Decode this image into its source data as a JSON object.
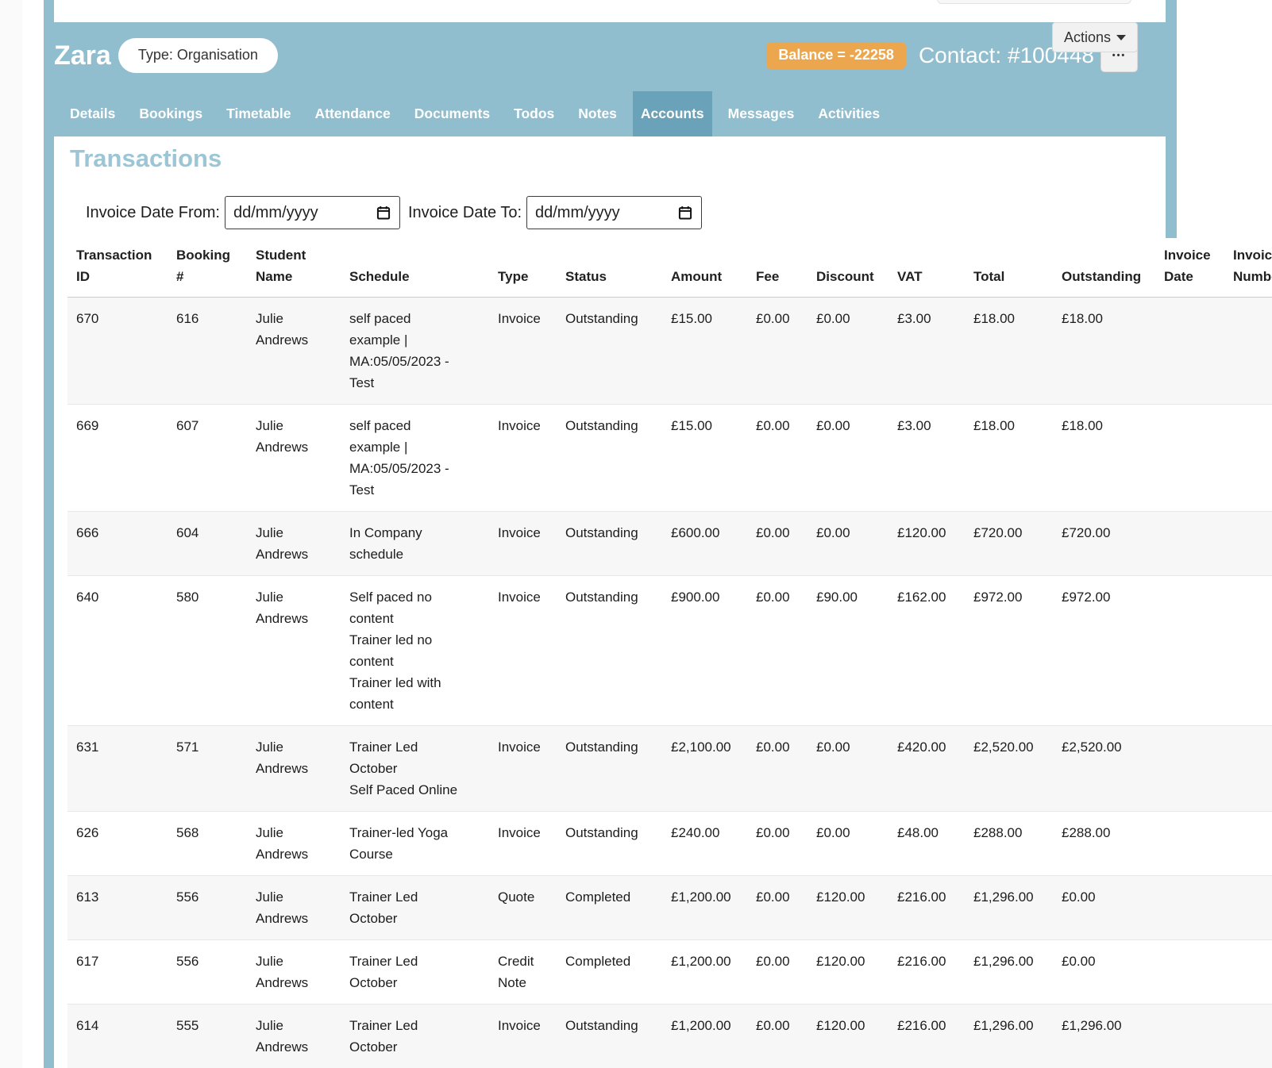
{
  "colors": {
    "panel_blue": "#90bece",
    "active_tab_blue": "#6aa3b9",
    "heading_blue": "#9cc6d5",
    "balance_orange": "#eca64e"
  },
  "header": {
    "contact_name": "Zara",
    "type_pill": "Type: Organisation",
    "balance_badge": "Balance = -22258",
    "contact_id": "Contact: #100448",
    "more_label": "•••",
    "actions_label": "Actions",
    "active_tab": "Accounts",
    "tabs": [
      "Details",
      "Bookings",
      "Timetable",
      "Attendance",
      "Documents",
      "Todos",
      "Notes",
      "Accounts",
      "Messages",
      "Activities"
    ]
  },
  "main": {
    "title": "Transactions",
    "filters": {
      "from_label": "Invoice Date From:",
      "to_label": "Invoice Date To:",
      "date_placeholder": "dd/mm/yyyy"
    },
    "table": {
      "columns": [
        "Transaction\nID",
        "Booking\n#",
        "Student\nName",
        "Schedule",
        "Type",
        "Status",
        "Amount",
        "Fee",
        "Discount",
        "VAT",
        "Total",
        "Outstanding",
        "Invoice\nDate",
        "Invoice\nNumber"
      ],
      "rows": [
        [
          "670",
          "616",
          "Julie\nAndrews",
          "self paced\nexample |\nMA:05/05/2023 -\nTest",
          "Invoice",
          "Outstanding",
          "£15.00",
          "£0.00",
          "£0.00",
          "£3.00",
          "£18.00",
          "£18.00",
          "",
          ""
        ],
        [
          "669",
          "607",
          "Julie\nAndrews",
          "self paced\nexample |\nMA:05/05/2023 -\nTest",
          "Invoice",
          "Outstanding",
          "£15.00",
          "£0.00",
          "£0.00",
          "£3.00",
          "£18.00",
          "£18.00",
          "",
          ""
        ],
        [
          "666",
          "604",
          "Julie\nAndrews",
          "In Company\nschedule",
          "Invoice",
          "Outstanding",
          "£600.00",
          "£0.00",
          "£0.00",
          "£120.00",
          "£720.00",
          "£720.00",
          "",
          ""
        ],
        [
          "640",
          "580",
          "Julie\nAndrews",
          "Self paced no\ncontent\nTrainer led no\ncontent\nTrainer led with\ncontent",
          "Invoice",
          "Outstanding",
          "£900.00",
          "£0.00",
          "£90.00",
          "£162.00",
          "£972.00",
          "£972.00",
          "",
          ""
        ],
        [
          "631",
          "571",
          "Julie\nAndrews",
          "Trainer Led\nOctober\nSelf Paced Online",
          "Invoice",
          "Outstanding",
          "£2,100.00",
          "£0.00",
          "£0.00",
          "£420.00",
          "£2,520.00",
          "£2,520.00",
          "",
          ""
        ],
        [
          "626",
          "568",
          "Julie\nAndrews",
          "Trainer-led Yoga\nCourse",
          "Invoice",
          "Outstanding",
          "£240.00",
          "£0.00",
          "£0.00",
          "£48.00",
          "£288.00",
          "£288.00",
          "",
          ""
        ],
        [
          "613",
          "556",
          "Julie\nAndrews",
          "Trainer Led\nOctober",
          "Quote",
          "Completed",
          "£1,200.00",
          "£0.00",
          "£120.00",
          "£216.00",
          "£1,296.00",
          "£0.00",
          "",
          ""
        ],
        [
          "617",
          "556",
          "Julie\nAndrews",
          "Trainer Led\nOctober",
          "Credit\nNote",
          "Completed",
          "£1,200.00",
          "£0.00",
          "£120.00",
          "£216.00",
          "£1,296.00",
          "£0.00",
          "",
          ""
        ],
        [
          "614",
          "555",
          "Julie\nAndrews",
          "Trainer Led\nOctober",
          "Invoice",
          "Outstanding",
          "£1,200.00",
          "£0.00",
          "£120.00",
          "£216.00",
          "£1,296.00",
          "£1,296.00",
          "",
          ""
        ]
      ]
    }
  }
}
